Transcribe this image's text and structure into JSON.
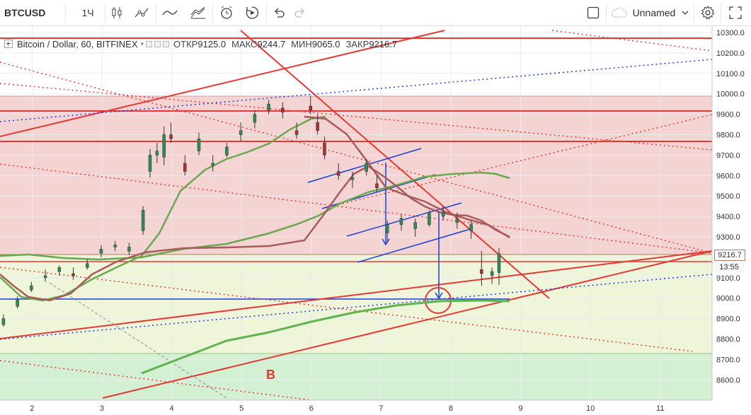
{
  "toolbar": {
    "symbol": "BTCUSD",
    "interval": "1Ч",
    "layout_name": "Unnamed",
    "icons": [
      "candles-icon",
      "indicators-icon",
      "line-tool-icon",
      "templates-icon",
      "alert-icon",
      "replay-icon",
      "undo-icon",
      "redo-icon",
      "fullscreen-square-icon",
      "cloud-icon",
      "settings-gear-icon",
      "fullscreen-icon"
    ]
  },
  "legend": {
    "title": "Bitcoin / Dollar, 60, BITFINEX",
    "open_label": "ОТКР",
    "open": "9125.0",
    "high_label": "МАКС",
    "high": "9244.7",
    "low_label": "МИН",
    "low": "9065.0",
    "close_label": "ЗАКР",
    "close": "9216.7"
  },
  "chart_data": {
    "type": "candlestick",
    "symbol": "BTCUSD",
    "title": "Bitcoin / Dollar, 60, BITFINEX",
    "y_ticks": [
      "10300.0",
      "10200.0",
      "10100.0",
      "10000.0",
      "9900.0",
      "9800.0",
      "9700.0",
      "9600.0",
      "9500.0",
      "9400.0",
      "9300.0",
      "9200.0",
      "9100.0",
      "9000.0",
      "8900.0",
      "8800.0",
      "8700.0",
      "8600.0"
    ],
    "x_ticks": [
      "2",
      "3",
      "4",
      "5",
      "6",
      "7",
      "8",
      "9",
      "10",
      "11"
    ],
    "ylim": [
      8530,
      10310
    ],
    "xlim": [
      1.55,
      11.65
    ],
    "current_price": "9216.7",
    "countdown": "13:55",
    "last_ohlc": {
      "open": 9125.0,
      "high": 9244.7,
      "low": 9065.0,
      "close": 9216.7
    },
    "ohlc_sample": [
      [
        1.6,
        8870,
        8920,
        8860,
        8900
      ],
      [
        1.8,
        8960,
        9010,
        8950,
        8995
      ],
      [
        2.0,
        9040,
        9080,
        9030,
        9060
      ],
      [
        2.2,
        9100,
        9140,
        9080,
        9110
      ],
      [
        2.4,
        9130,
        9160,
        9110,
        9150
      ],
      [
        2.6,
        9120,
        9150,
        9090,
        9110
      ],
      [
        2.8,
        9150,
        9190,
        9140,
        9170
      ],
      [
        3.0,
        9220,
        9260,
        9200,
        9240
      ],
      [
        3.2,
        9250,
        9280,
        9230,
        9260
      ],
      [
        3.4,
        9230,
        9270,
        9210,
        9250
      ],
      [
        3.6,
        9330,
        9450,
        9310,
        9430
      ],
      [
        3.7,
        9620,
        9730,
        9590,
        9700
      ],
      [
        3.8,
        9700,
        9760,
        9660,
        9720
      ],
      [
        3.9,
        9690,
        9840,
        9650,
        9800
      ],
      [
        4.0,
        9800,
        9860,
        9760,
        9780
      ],
      [
        4.2,
        9660,
        9700,
        9600,
        9620
      ],
      [
        4.4,
        9720,
        9810,
        9700,
        9780
      ],
      [
        4.6,
        9650,
        9700,
        9620,
        9660
      ],
      [
        4.8,
        9700,
        9760,
        9690,
        9740
      ],
      [
        5.0,
        9800,
        9860,
        9770,
        9820
      ],
      [
        5.2,
        9860,
        9920,
        9830,
        9900
      ],
      [
        5.4,
        9920,
        9970,
        9900,
        9950
      ],
      [
        5.6,
        9930,
        9960,
        9880,
        9910
      ],
      [
        5.8,
        9820,
        9860,
        9780,
        9800
      ],
      [
        6.0,
        9940,
        9990,
        9900,
        9920
      ],
      [
        6.1,
        9860,
        9900,
        9800,
        9820
      ],
      [
        6.2,
        9760,
        9790,
        9680,
        9700
      ],
      [
        6.4,
        9620,
        9660,
        9580,
        9600
      ],
      [
        6.6,
        9580,
        9620,
        9540,
        9590
      ],
      [
        6.8,
        9620,
        9680,
        9600,
        9660
      ],
      [
        6.95,
        9560,
        9600,
        9520,
        9540
      ],
      [
        7.1,
        9320,
        9380,
        9280,
        9360
      ],
      [
        7.3,
        9360,
        9410,
        9330,
        9390
      ],
      [
        7.5,
        9340,
        9390,
        9300,
        9370
      ],
      [
        7.7,
        9360,
        9430,
        9350,
        9420
      ],
      [
        7.9,
        9400,
        9450,
        9380,
        9420
      ],
      [
        8.1,
        9370,
        9420,
        9340,
        9390
      ],
      [
        8.3,
        9330,
        9380,
        9290,
        9360
      ],
      [
        8.45,
        9140,
        9230,
        9060,
        9120
      ],
      [
        8.6,
        9110,
        9150,
        9070,
        9130
      ],
      [
        8.7,
        9125,
        9245,
        9065,
        9217
      ]
    ],
    "moving_averages": [
      {
        "color": "#6aa84f",
        "values": [
          [
            1.55,
            8980
          ],
          [
            2.5,
            9100
          ],
          [
            3.5,
            9230
          ],
          [
            4.0,
            9430
          ],
          [
            4.5,
            9580
          ],
          [
            5.0,
            9700
          ],
          [
            5.6,
            9770
          ],
          [
            6.0,
            9850
          ]
        ]
      },
      {
        "color": "#a95a5a",
        "values": [
          [
            1.55,
            9100
          ],
          [
            2.0,
            9010
          ],
          [
            2.5,
            9100
          ],
          [
            3.0,
            9180
          ],
          [
            3.5,
            9250
          ],
          [
            4.0,
            9420
          ]
        ]
      }
    ],
    "grid": true,
    "legend_placement": "top-left"
  }
}
